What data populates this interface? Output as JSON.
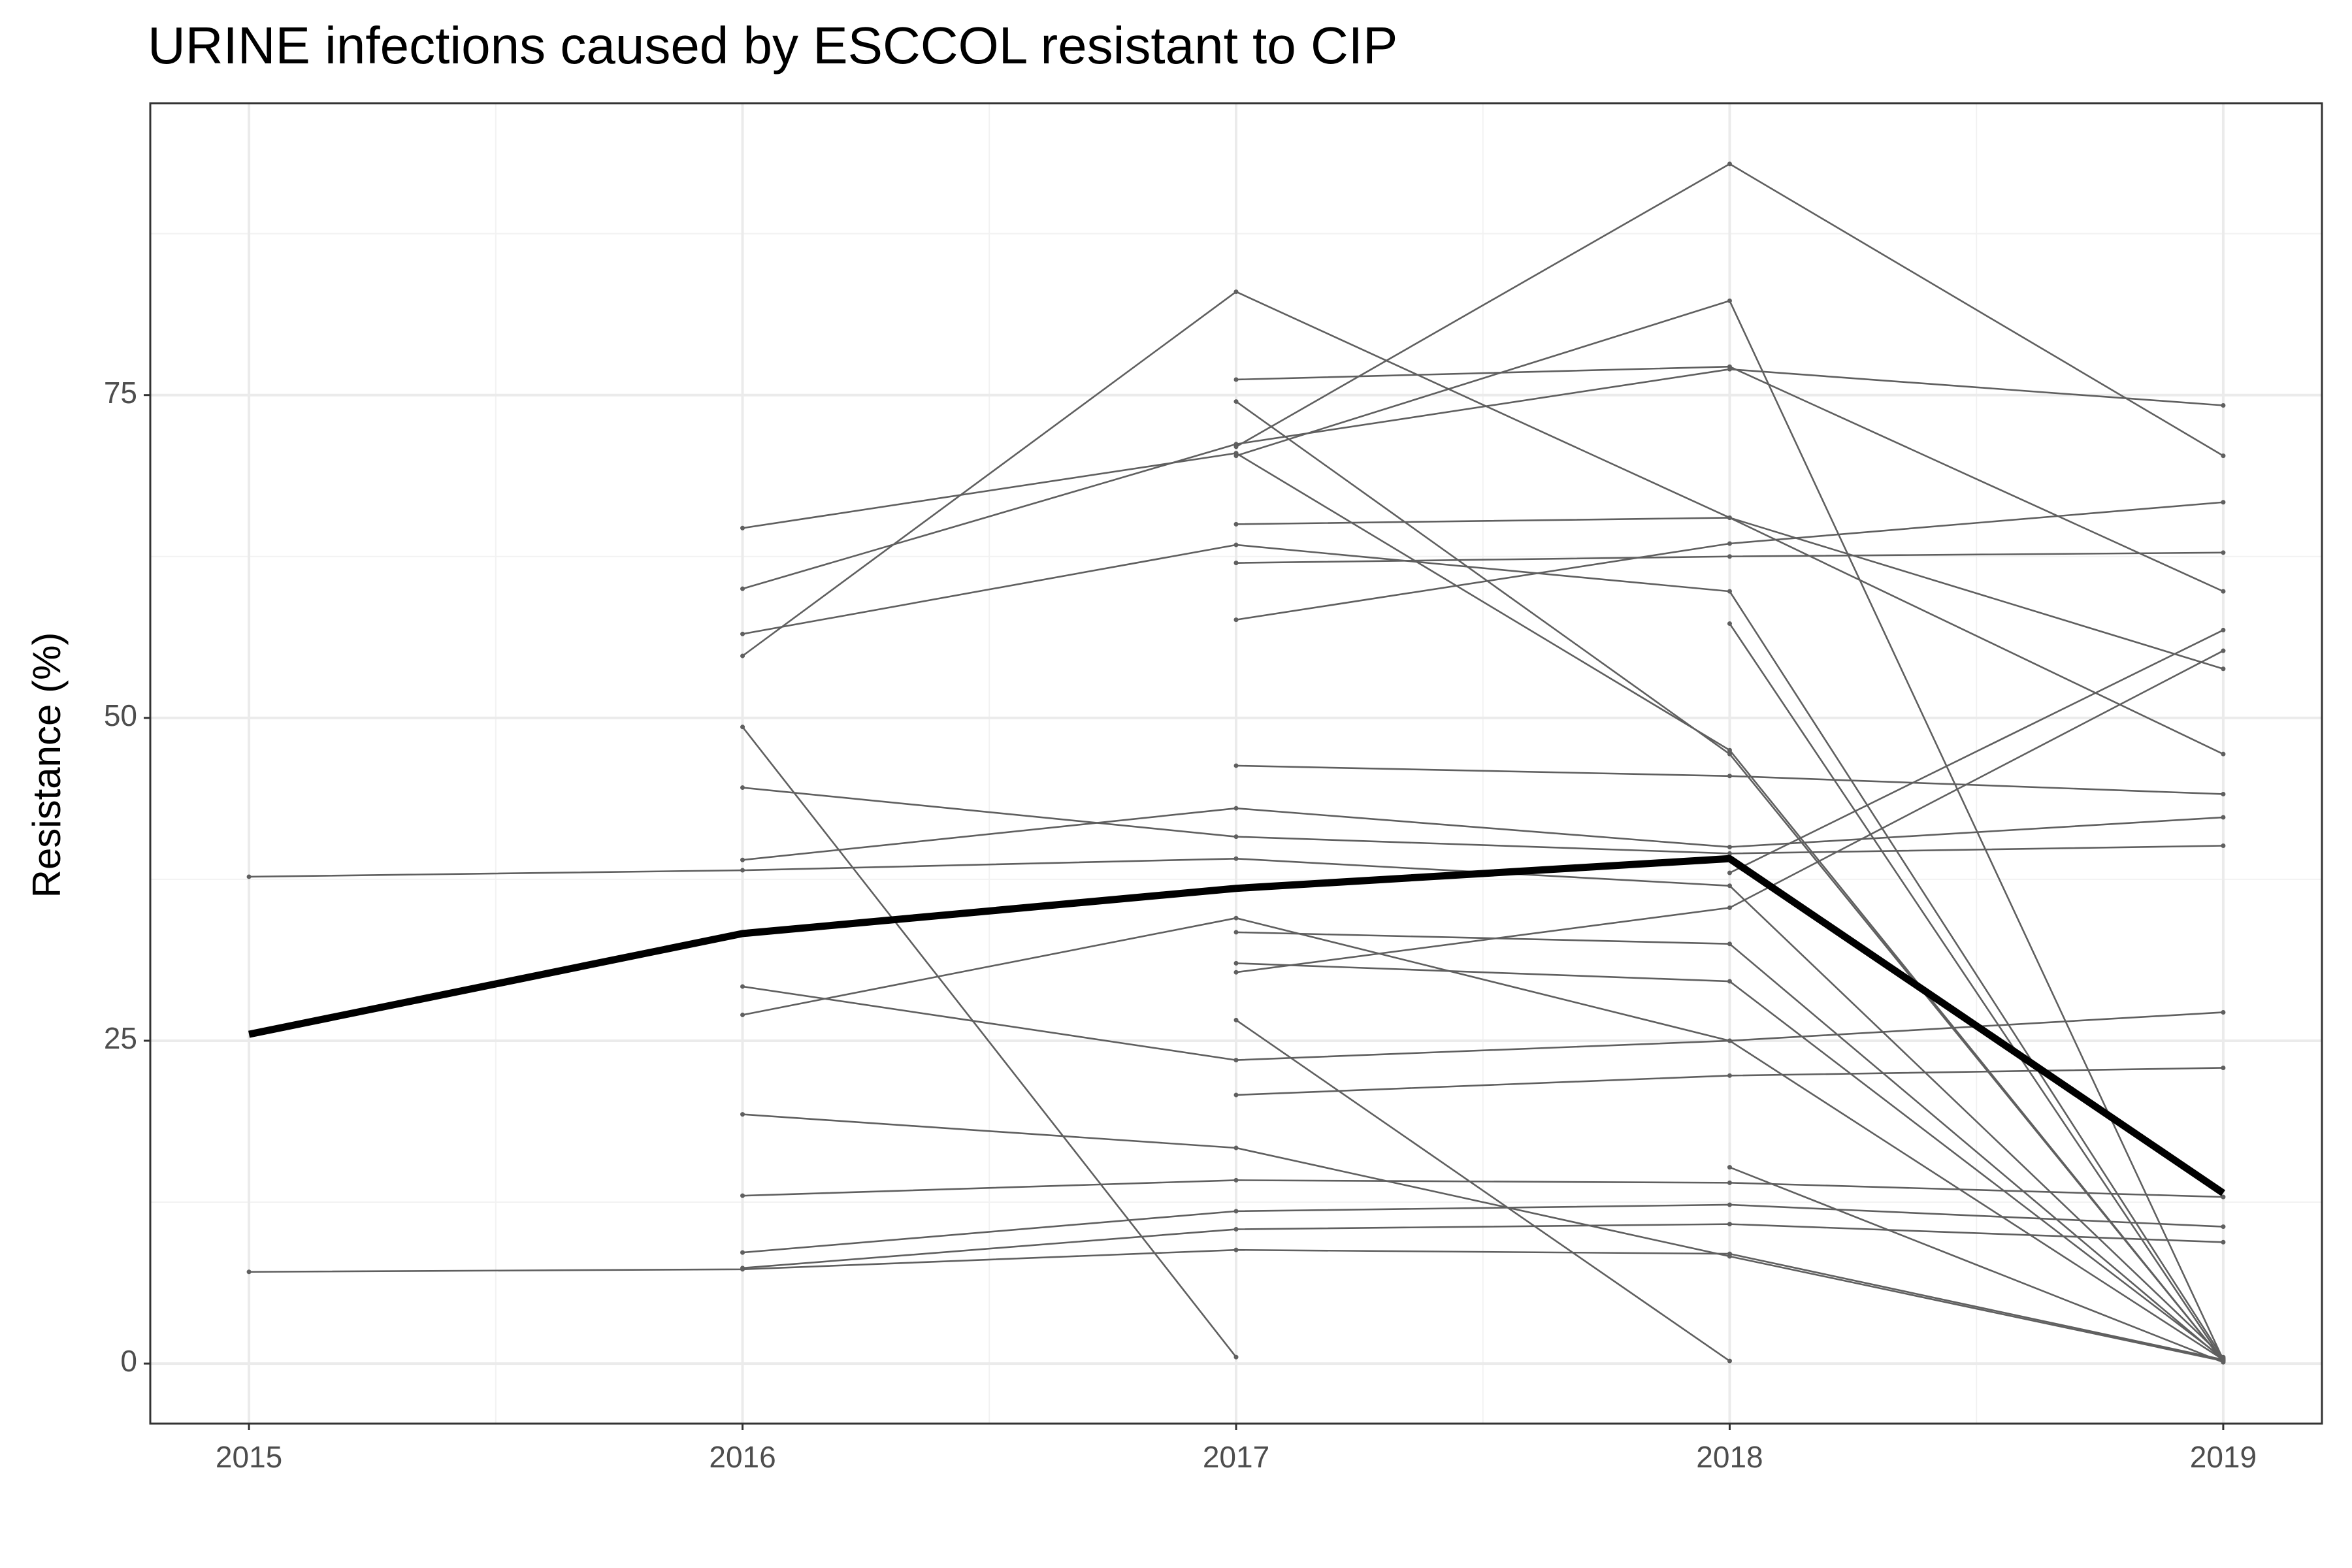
{
  "chart_data": {
    "type": "line",
    "title": "URINE infections caused by ESCCOL resistant to CIP",
    "y_label": "Resistance (%)",
    "x": [
      2015,
      2016,
      2017,
      2018,
      2019
    ],
    "xlim": [
      2014.8,
      2019.2
    ],
    "xticks": [
      2015,
      2016,
      2017,
      2018,
      2019
    ],
    "ylim": [
      -4.65,
      97.6
    ],
    "yticks": [
      0,
      25,
      50,
      75
    ],
    "x_minor_grid": [
      2015.5,
      2016.5,
      2017.5,
      2018.5
    ],
    "y_minor_grid": [
      12.5,
      37.5,
      62.5,
      87.5
    ],
    "grid": true,
    "series": [
      {
        "color": "#5f5f5f",
        "values": [
          37.7,
          38.2,
          39.1,
          37.0,
          0.5
        ]
      },
      {
        "color": "#5f5f5f",
        "values": [
          7.1,
          7.3,
          8.8,
          8.5,
          0.3
        ]
      },
      {
        "color": "#5f5f5f",
        "values": [
          null,
          64.7,
          70.5,
          47.5,
          0.2
        ]
      },
      {
        "color": "#5f5f5f",
        "values": [
          null,
          60.0,
          71.2,
          77.0,
          74.2
        ]
      },
      {
        "color": "#5f5f5f",
        "values": [
          null,
          56.5,
          63.4,
          59.8,
          0.4
        ]
      },
      {
        "color": "#5f5f5f",
        "values": [
          null,
          54.8,
          83.0,
          65.5,
          47.2
        ]
      },
      {
        "color": "#5f5f5f",
        "values": [
          null,
          49.3,
          0.5,
          null,
          null
        ]
      },
      {
        "color": "#5f5f5f",
        "values": [
          null,
          44.6,
          40.8,
          39.5,
          40.1
        ]
      },
      {
        "color": "#5f5f5f",
        "values": [
          null,
          39.0,
          43.0,
          40.0,
          42.3
        ]
      },
      {
        "color": "#5f5f5f",
        "values": [
          null,
          29.2,
          23.5,
          25.0,
          27.2
        ]
      },
      {
        "color": "#5f5f5f",
        "values": [
          null,
          27.0,
          34.5,
          25.0,
          0.3
        ]
      },
      {
        "color": "#5f5f5f",
        "values": [
          null,
          19.3,
          16.7,
          8.3,
          0.2
        ]
      },
      {
        "color": "#5f5f5f",
        "values": [
          null,
          13.0,
          14.2,
          14.0,
          12.9
        ]
      },
      {
        "color": "#5f5f5f",
        "values": [
          null,
          8.6,
          11.8,
          12.3,
          10.6
        ]
      },
      {
        "color": "#5f5f5f",
        "values": [
          null,
          7.4,
          10.4,
          10.8,
          9.4
        ]
      },
      {
        "color": "#5f5f5f",
        "values": [
          null,
          null,
          76.2,
          77.2,
          59.8
        ]
      },
      {
        "color": "#5f5f5f",
        "values": [
          null,
          null,
          74.5,
          47.2,
          0.2
        ]
      },
      {
        "color": "#5f5f5f",
        "values": [
          null,
          null,
          65.0,
          65.5,
          53.8
        ]
      },
      {
        "color": "#5f5f5f",
        "values": [
          null,
          null,
          62.0,
          62.5,
          62.8
        ]
      },
      {
        "color": "#5f5f5f",
        "values": [
          null,
          null,
          57.6,
          63.5,
          66.7
        ]
      },
      {
        "color": "#5f5f5f",
        "values": [
          null,
          null,
          46.3,
          45.5,
          44.1
        ]
      },
      {
        "color": "#5f5f5f",
        "values": [
          null,
          null,
          33.4,
          32.5,
          0.3
        ]
      },
      {
        "color": "#5f5f5f",
        "values": [
          null,
          null,
          31.0,
          29.6,
          0.4
        ]
      },
      {
        "color": "#5f5f5f",
        "values": [
          null,
          null,
          30.3,
          35.3,
          55.2
        ]
      },
      {
        "color": "#5f5f5f",
        "values": [
          null,
          null,
          26.6,
          0.2,
          null
        ]
      },
      {
        "color": "#5f5f5f",
        "values": [
          null,
          null,
          20.8,
          22.3,
          22.9
        ]
      },
      {
        "color": "#5f5f5f",
        "values": [
          null,
          null,
          71.0,
          92.9,
          70.3
        ]
      },
      {
        "color": "#5f5f5f",
        "values": [
          null,
          null,
          70.3,
          82.3,
          0.3
        ]
      },
      {
        "color": "#5f5f5f",
        "values": [
          null,
          null,
          null,
          57.3,
          0.2
        ]
      },
      {
        "color": "#5f5f5f",
        "values": [
          null,
          null,
          null,
          15.2,
          0.1
        ]
      },
      {
        "color": "#5f5f5f",
        "values": [
          null,
          null,
          null,
          38.0,
          56.8
        ]
      },
      {
        "color": "#000000",
        "values": [
          25.5,
          33.3,
          36.8,
          39.1,
          13.2
        ]
      }
    ]
  }
}
